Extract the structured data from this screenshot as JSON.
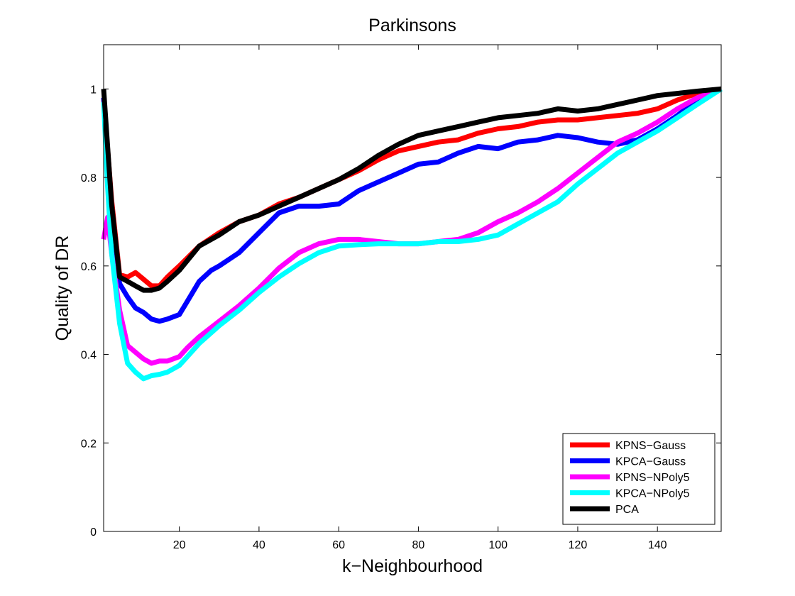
{
  "chart_data": {
    "type": "line",
    "title": "Parkinsons",
    "xlabel": "k−Neighbourhood",
    "ylabel": "Quality of DR",
    "xlim": [
      1,
      156
    ],
    "ylim": [
      0,
      1.1
    ],
    "xticks": [
      20,
      40,
      60,
      80,
      100,
      120,
      140
    ],
    "xtick_labels": [
      "20",
      "40",
      "60",
      "80",
      "100",
      "120",
      "140"
    ],
    "yticks": [
      0,
      0.2,
      0.4,
      0.6,
      0.8,
      1
    ],
    "ytick_labels": [
      "0",
      "0.2",
      "0.4",
      "0.6",
      "0.8",
      "1"
    ],
    "grid": false,
    "legend_position": "bottom-right",
    "series": [
      {
        "name": "KPNS−Gauss",
        "color": "#ff0000",
        "x": [
          1,
          3,
          5,
          7,
          9,
          11,
          13,
          15,
          17,
          20,
          25,
          30,
          35,
          40,
          45,
          50,
          55,
          60,
          65,
          70,
          75,
          80,
          85,
          90,
          95,
          100,
          105,
          110,
          115,
          120,
          125,
          130,
          135,
          140,
          145,
          150,
          156
        ],
        "y": [
          0.98,
          0.75,
          0.58,
          0.575,
          0.585,
          0.57,
          0.555,
          0.555,
          0.575,
          0.6,
          0.645,
          0.675,
          0.7,
          0.715,
          0.74,
          0.755,
          0.775,
          0.795,
          0.815,
          0.84,
          0.86,
          0.87,
          0.88,
          0.885,
          0.9,
          0.91,
          0.915,
          0.925,
          0.93,
          0.93,
          0.935,
          0.94,
          0.945,
          0.955,
          0.975,
          0.99,
          1.0
        ]
      },
      {
        "name": "KPCA−Gauss",
        "color": "#0000ff",
        "x": [
          1,
          3,
          5,
          7,
          9,
          11,
          13,
          15,
          17,
          20,
          22,
          25,
          28,
          30,
          35,
          40,
          45,
          50,
          55,
          60,
          65,
          70,
          75,
          80,
          85,
          90,
          95,
          100,
          105,
          110,
          115,
          120,
          125,
          130,
          135,
          140,
          145,
          150,
          156
        ],
        "y": [
          0.98,
          0.72,
          0.56,
          0.53,
          0.505,
          0.495,
          0.48,
          0.475,
          0.48,
          0.49,
          0.52,
          0.565,
          0.59,
          0.6,
          0.63,
          0.675,
          0.72,
          0.735,
          0.735,
          0.74,
          0.77,
          0.79,
          0.81,
          0.83,
          0.835,
          0.855,
          0.87,
          0.865,
          0.88,
          0.885,
          0.895,
          0.89,
          0.88,
          0.875,
          0.885,
          0.91,
          0.94,
          0.975,
          1.0
        ]
      },
      {
        "name": "KPNS−NPoly5",
        "color": "#ff00ff",
        "x": [
          1,
          2,
          3,
          5,
          7,
          9,
          11,
          13,
          15,
          17,
          20,
          22,
          25,
          30,
          35,
          40,
          45,
          50,
          55,
          60,
          65,
          70,
          75,
          80,
          85,
          90,
          95,
          100,
          105,
          110,
          115,
          120,
          125,
          130,
          135,
          140,
          145,
          150,
          156
        ],
        "y": [
          0.66,
          0.71,
          0.63,
          0.5,
          0.42,
          0.405,
          0.39,
          0.38,
          0.385,
          0.385,
          0.395,
          0.415,
          0.44,
          0.475,
          0.51,
          0.55,
          0.595,
          0.63,
          0.65,
          0.66,
          0.66,
          0.655,
          0.65,
          0.65,
          0.655,
          0.66,
          0.675,
          0.7,
          0.72,
          0.745,
          0.775,
          0.81,
          0.845,
          0.88,
          0.9,
          0.925,
          0.955,
          0.98,
          1.0
        ]
      },
      {
        "name": "KPCA−NPoly5",
        "color": "#00ffff",
        "x": [
          1,
          2,
          3,
          5,
          7,
          9,
          11,
          13,
          15,
          17,
          20,
          22,
          25,
          30,
          35,
          40,
          45,
          50,
          55,
          60,
          65,
          70,
          75,
          80,
          85,
          90,
          95,
          100,
          105,
          110,
          115,
          120,
          125,
          130,
          135,
          140,
          145,
          150,
          156
        ],
        "y": [
          0.97,
          0.78,
          0.63,
          0.47,
          0.38,
          0.36,
          0.345,
          0.352,
          0.355,
          0.36,
          0.375,
          0.395,
          0.425,
          0.465,
          0.5,
          0.54,
          0.575,
          0.605,
          0.63,
          0.645,
          0.648,
          0.65,
          0.65,
          0.65,
          0.655,
          0.655,
          0.66,
          0.67,
          0.695,
          0.72,
          0.745,
          0.785,
          0.82,
          0.855,
          0.88,
          0.905,
          0.935,
          0.965,
          1.0
        ]
      },
      {
        "name": "PCA",
        "color": "#000000",
        "x": [
          1,
          3,
          5,
          7,
          9,
          11,
          13,
          15,
          17,
          20,
          25,
          30,
          35,
          40,
          45,
          50,
          55,
          60,
          65,
          70,
          75,
          80,
          85,
          90,
          95,
          100,
          105,
          110,
          115,
          120,
          125,
          130,
          135,
          140,
          145,
          150,
          156
        ],
        "y": [
          1.0,
          0.74,
          0.575,
          0.565,
          0.555,
          0.545,
          0.545,
          0.55,
          0.565,
          0.59,
          0.645,
          0.67,
          0.7,
          0.715,
          0.735,
          0.755,
          0.775,
          0.795,
          0.82,
          0.85,
          0.875,
          0.895,
          0.905,
          0.915,
          0.925,
          0.935,
          0.94,
          0.945,
          0.955,
          0.95,
          0.955,
          0.965,
          0.975,
          0.985,
          0.99,
          0.995,
          1.0
        ]
      }
    ]
  }
}
